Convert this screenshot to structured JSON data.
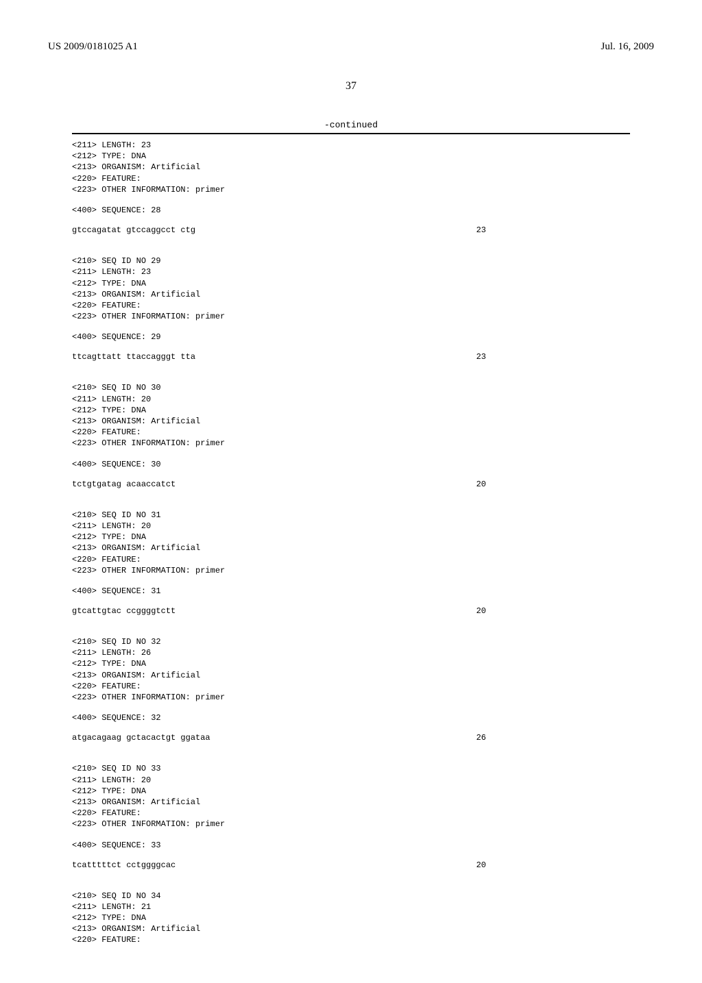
{
  "header": {
    "pub_number": "US 2009/0181025 A1",
    "pub_date": "Jul. 16, 2009"
  },
  "page_number": "37",
  "continued_label": "-continued",
  "sequences": [
    {
      "id": "28",
      "has_id_line": false,
      "length": "23",
      "type": "DNA",
      "organism": "Artificial",
      "feature": "",
      "other_info": "primer",
      "sequence_label": "SEQUENCE: 28",
      "sequence": "gtccagatat gtccaggcct ctg",
      "seq_len": "23"
    },
    {
      "id": "29",
      "has_id_line": true,
      "length": "23",
      "type": "DNA",
      "organism": "Artificial",
      "feature": "",
      "other_info": "primer",
      "sequence_label": "SEQUENCE: 29",
      "sequence": "ttcagttatt ttaccagggt tta",
      "seq_len": "23"
    },
    {
      "id": "30",
      "has_id_line": true,
      "length": "20",
      "type": "DNA",
      "organism": "Artificial",
      "feature": "",
      "other_info": "primer",
      "sequence_label": "SEQUENCE: 30",
      "sequence": "tctgtgatag acaaccatct",
      "seq_len": "20"
    },
    {
      "id": "31",
      "has_id_line": true,
      "length": "20",
      "type": "DNA",
      "organism": "Artificial",
      "feature": "",
      "other_info": "primer",
      "sequence_label": "SEQUENCE: 31",
      "sequence": "gtcattgtac ccggggtctt",
      "seq_len": "20"
    },
    {
      "id": "32",
      "has_id_line": true,
      "length": "26",
      "type": "DNA",
      "organism": "Artificial",
      "feature": "",
      "other_info": "primer",
      "sequence_label": "SEQUENCE: 32",
      "sequence": "atgacagaag gctacactgt ggataa",
      "seq_len": "26"
    },
    {
      "id": "33",
      "has_id_line": true,
      "length": "20",
      "type": "DNA",
      "organism": "Artificial",
      "feature": "",
      "other_info": "primer",
      "sequence_label": "SEQUENCE: 33",
      "sequence": "tcatttttct cctggggcac",
      "seq_len": "20"
    }
  ],
  "partial_sequence": {
    "id": "34",
    "length": "21",
    "type": "DNA",
    "organism": "Artificial"
  }
}
